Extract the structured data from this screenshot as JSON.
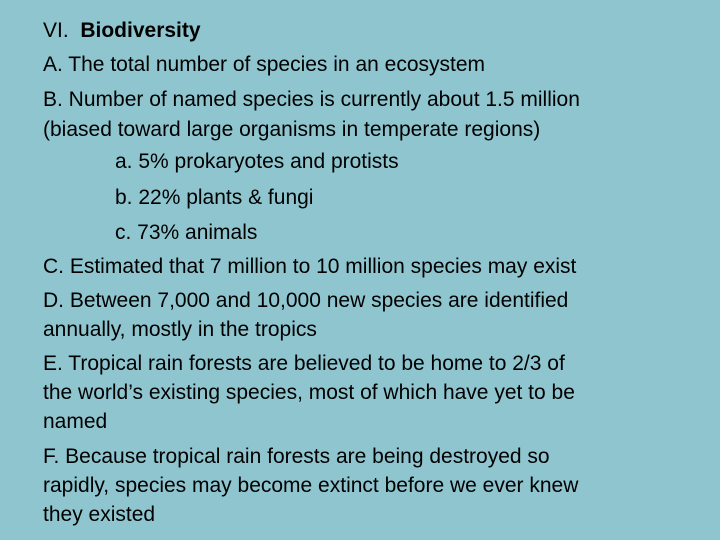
{
  "slide": {
    "heading_prefix": "VI.",
    "heading_title": "Biodiversity",
    "items": [
      "A.  The total number of species in an ecosystem",
      "B.  Number of named species is currently about 1.5 million",
      "(biased toward large organisms in temperate regions)",
      "a.  5% prokaryotes and protists",
      "b.  22% plants & fungi",
      "c.  73% animals",
      "C.  Estimated that 7 million to 10 million species may exist",
      "D.  Between 7,000 and 10,000 new species are identified",
      "annually, mostly in the tropics",
      "E.  Tropical rain forests are believed to be home to 2/3 of",
      "the world’s existing species, most of which have yet to be",
      "named",
      "F.  Because tropical rain forests are being destroyed so",
      "rapidly, species may become extinct before we ever knew",
      "they existed"
    ]
  }
}
